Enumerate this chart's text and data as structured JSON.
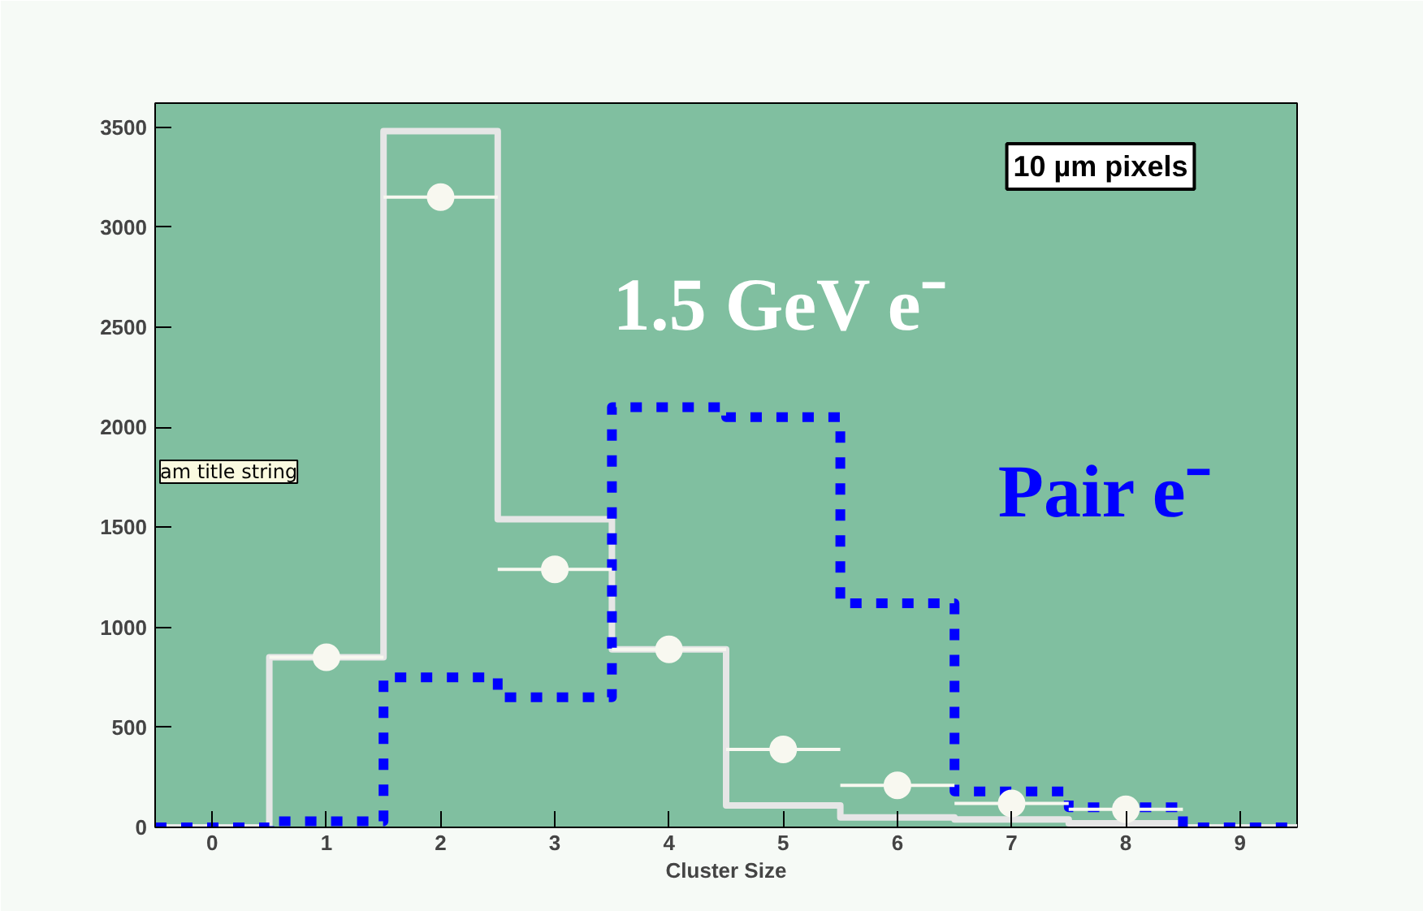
{
  "chart_data": {
    "type": "histogram",
    "xlabel": "Cluster Size",
    "bins": [
      -0.5,
      0.5,
      1.5,
      2.5,
      3.5,
      4.5,
      5.5,
      6.5,
      7.5,
      8.5,
      9.5
    ],
    "series": [
      {
        "color": "#e6e6e6",
        "line_style": "solid",
        "values": [
          0,
          850,
          3480,
          1540,
          890,
          110,
          50,
          40,
          20,
          0
        ]
      },
      {
        "color": "#0000ff",
        "line_style": "dotted",
        "values": [
          0,
          30,
          750,
          650,
          2100,
          2050,
          1120,
          180,
          100,
          0
        ]
      },
      {
        "type": "scatter",
        "color": "#f8f8f0",
        "marker": "circle",
        "x": [
          1,
          2,
          3,
          4,
          5,
          6,
          7,
          8
        ],
        "values": [
          850,
          3150,
          1290,
          890,
          390,
          210,
          120,
          90
        ],
        "xerrors": [
          0.5,
          0.5,
          0.5,
          0.5,
          0.5,
          0.5,
          0.5,
          0.5
        ]
      }
    ],
    "xlim": [
      -0.5,
      9.5
    ],
    "ylim": [
      0,
      3620
    ],
    "xticks": [
      0,
      1,
      2,
      3,
      4,
      5,
      6,
      7,
      8,
      9
    ],
    "yticks": [
      0,
      500,
      1000,
      1500,
      2000,
      2500,
      3000,
      3500
    ],
    "annotations": [
      "10 µm pixels",
      "1.5 GeV e⁻",
      "Pair e⁻",
      "am title string"
    ]
  }
}
